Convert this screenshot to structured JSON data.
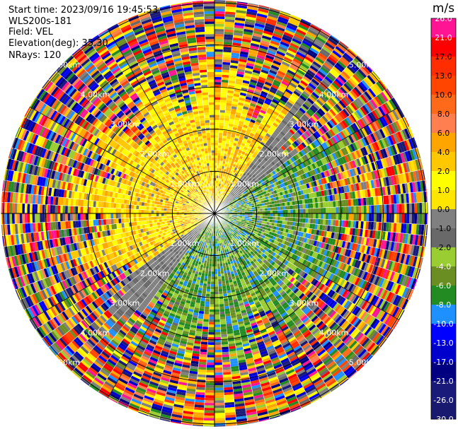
{
  "header": {
    "start_time": "Start time: 2023/09/16 19:45:53",
    "instrument": "WLS200s-181",
    "field": "Field: VEL",
    "elevation": "Elevation(deg): 35.30",
    "nrays": "NRays: 120"
  },
  "chart_data": {
    "type": "heatmap",
    "projection": "polar-ppi",
    "field": "VEL",
    "units": "m/s",
    "n_rays": 120,
    "elevation_deg": 35.3,
    "range_rings_km": [
      1,
      2,
      3,
      4,
      5
    ],
    "range_ring_labels": [
      {
        "text": "1.00km"
      },
      {
        "text": "1.00km"
      },
      {
        "text": "1.00km"
      },
      {
        "text": "1.00km"
      },
      {
        "text": "2.00km"
      },
      {
        "text": "2.00km"
      },
      {
        "text": "2.00km"
      },
      {
        "text": "2.00km"
      },
      {
        "text": "3.00km"
      },
      {
        "text": "3.00km"
      },
      {
        "text": "3.00km"
      },
      {
        "text": "3.00km"
      },
      {
        "text": "4.00km"
      },
      {
        "text": "4.00km"
      },
      {
        "text": "4.00km"
      },
      {
        "text": "4.00km"
      },
      {
        "text": "5.00km"
      },
      {
        "text": "5.00km"
      },
      {
        "text": "5.00km"
      },
      {
        "text": "5.00km"
      }
    ],
    "colorbar": {
      "title": "m/s",
      "ticks": [
        "26.0",
        "21.0",
        "17.0",
        "13.0",
        "10.0",
        "8.0",
        "6.0",
        "4.0",
        "2.0",
        "1.0",
        "0.0",
        "-1.0",
        "-2.0",
        "-4.0",
        "-6.0",
        "-8.0",
        "-10.0",
        "-13.0",
        "-17.0",
        "-21.0",
        "-26.0",
        "-30.0"
      ],
      "colors": [
        "#ff1493",
        "#ff0000",
        "#ff2d00",
        "#ff4500",
        "#ff6a1a",
        "#ff7f50",
        "#ffa500",
        "#ffc800",
        "#ffff00",
        "#ffe600",
        "#808080",
        "#696969",
        "#9acd32",
        "#6b8e23",
        "#228b22",
        "#1e90ff",
        "#0000ff",
        "#0000cd",
        "#000080",
        "#1a1a7a",
        "#191970"
      ]
    },
    "wind_pattern": {
      "near_field": "positive (toward NW), negative (toward SE)",
      "far_field": "noise"
    }
  }
}
